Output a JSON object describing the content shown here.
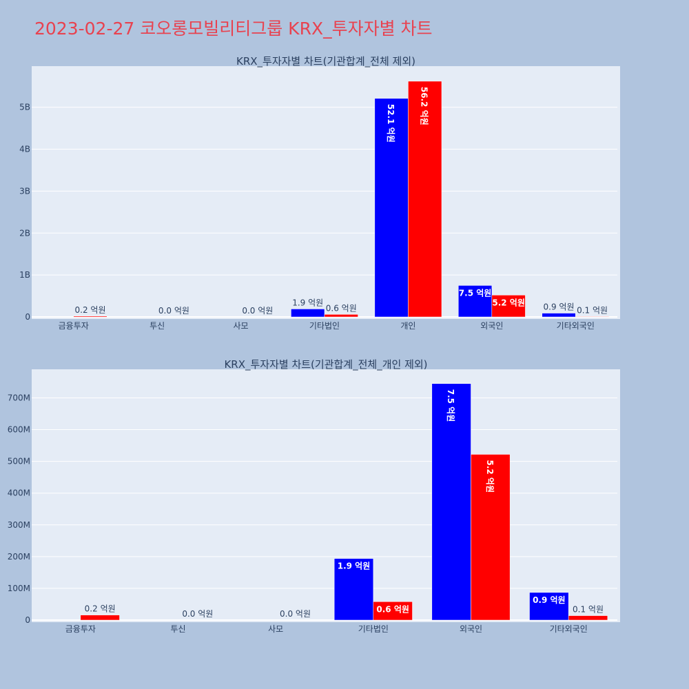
{
  "title": "2023-02-27 코오롱모빌리티그룹 KRX_투자자별 차트",
  "colors": {
    "background": "#b0c4de",
    "plot_bg": "#e5ecf6",
    "title": "#e8424f",
    "buy": "#0000ff",
    "sell": "#ff0000"
  },
  "chart_data": [
    {
      "type": "bar",
      "title": "KRX_투자자별 차트(기관합계_전체 제외)",
      "categories": [
        "금융투자",
        "투신",
        "사모",
        "기타법인",
        "개인",
        "외국인",
        "기타외국인"
      ],
      "series": [
        {
          "color": "#0000ff",
          "values": [
            0,
            0,
            0,
            190000000,
            5210000000,
            750000000,
            90000000
          ],
          "labels": [
            "",
            "",
            "",
            "1.9 억원",
            "52.1 억원",
            "7.5 억원",
            "0.9 억원"
          ]
        },
        {
          "color": "#ff0000",
          "values": [
            20000000,
            0,
            0,
            60000000,
            5620000000,
            520000000,
            10000000
          ],
          "labels": [
            "0.2 억원",
            "0.0 억원",
            "0.0 억원",
            "0.6 억원",
            "56.2 억원",
            "5.2 억원",
            "0.1 억원"
          ]
        }
      ],
      "ylim": [
        0,
        5980000000
      ],
      "yticks": [
        0,
        1000000000,
        2000000000,
        3000000000,
        4000000000,
        5000000000
      ],
      "ytick_labels": [
        "0",
        "1B",
        "2B",
        "3B",
        "4B",
        "5B"
      ]
    },
    {
      "type": "bar",
      "title": "KRX_투자자별 차트(기관합계_전체_개인 제외)",
      "categories": [
        "금융투자",
        "투신",
        "사모",
        "기타법인",
        "외국인",
        "기타외국인"
      ],
      "series": [
        {
          "color": "#0000ff",
          "values": [
            0,
            0,
            0,
            194000000,
            745000000,
            87000000
          ],
          "labels": [
            "",
            "",
            "",
            "1.9 억원",
            "7.5 억원",
            "0.9 억원"
          ]
        },
        {
          "color": "#ff0000",
          "values": [
            16000000,
            0,
            0,
            58000000,
            522000000,
            14000000
          ],
          "labels": [
            "0.2 억원",
            "0.0 억원",
            "0.0 억원",
            "0.6 억원",
            "5.2 억원",
            "0.1 억원"
          ]
        }
      ],
      "ylim": [
        0,
        790000000
      ],
      "yticks": [
        0,
        100000000,
        200000000,
        300000000,
        400000000,
        500000000,
        600000000,
        700000000
      ],
      "ytick_labels": [
        "0",
        "100M",
        "200M",
        "300M",
        "400M",
        "500M",
        "600M",
        "700M"
      ]
    }
  ]
}
